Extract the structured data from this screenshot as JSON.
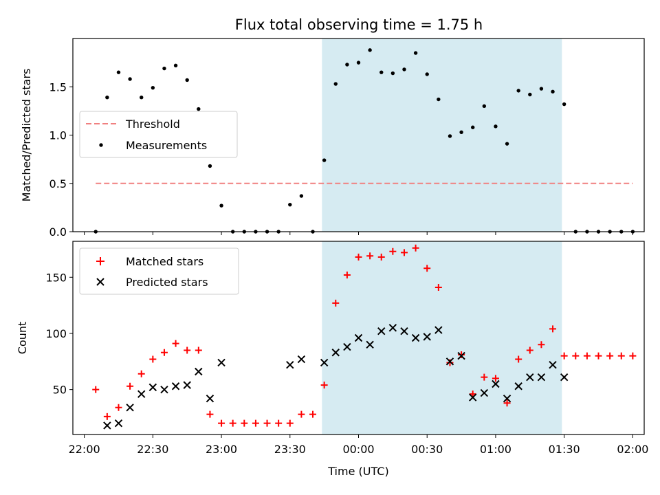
{
  "title": "Flux total observing time = 1.75 h",
  "colors": {
    "threshold": "#f08080",
    "measurement": "#000000",
    "matched": "#ff0000",
    "predicted": "#000000",
    "span": "#add8e6"
  },
  "chart_data": [
    {
      "type": "scatter",
      "ylabel": "Matched/Predicted stars",
      "ylim": [
        0,
        2.0
      ],
      "yticks": [
        0.0,
        0.5,
        1.0,
        1.5
      ],
      "ytick_labels": [
        "0.0",
        "0.5",
        "1.0",
        "1.5"
      ],
      "xlim": [
        "21:55",
        "02:05"
      ],
      "highlight_span": [
        "23:44",
        "01:29"
      ],
      "legend": "center-left",
      "threshold": {
        "name": "Threshold",
        "value": 0.5,
        "x_start": "22:05",
        "x_end": "02:00"
      },
      "series": [
        {
          "name": "Measurements",
          "x": [
            "22:05",
            "22:10",
            "22:15",
            "22:20",
            "22:25",
            "22:30",
            "22:35",
            "22:40",
            "22:45",
            "22:50",
            "22:55",
            "23:00",
            "23:05",
            "23:10",
            "23:15",
            "23:20",
            "23:25",
            "23:30",
            "23:35",
            "23:40",
            "23:45",
            "23:50",
            "23:55",
            "00:00",
            "00:05",
            "00:10",
            "00:15",
            "00:20",
            "00:25",
            "00:30",
            "00:35",
            "00:40",
            "00:45",
            "00:50",
            "00:55",
            "01:00",
            "01:05",
            "01:10",
            "01:15",
            "01:20",
            "01:25",
            "01:30",
            "01:35",
            "01:40",
            "01:45",
            "01:50",
            "01:55",
            "02:00"
          ],
          "y": [
            0,
            1.39,
            1.65,
            1.58,
            1.39,
            1.49,
            1.69,
            1.72,
            1.57,
            1.27,
            0.68,
            0.27,
            0,
            0,
            0,
            0,
            0,
            0.28,
            0.37,
            0,
            0.74,
            1.53,
            1.73,
            1.75,
            1.88,
            1.65,
            1.64,
            1.68,
            1.85,
            1.63,
            1.37,
            0.99,
            1.03,
            1.08,
            1.3,
            1.09,
            0.91,
            1.46,
            1.42,
            1.48,
            1.45,
            1.32,
            0,
            0,
            0,
            0,
            0,
            0
          ]
        }
      ]
    },
    {
      "type": "scatter",
      "xlabel": "Time (UTC)",
      "ylabel": "Count",
      "ylim": [
        10,
        182
      ],
      "yticks": [
        50,
        100,
        150
      ],
      "xticks": [
        "22:00",
        "22:30",
        "23:00",
        "23:30",
        "00:00",
        "00:30",
        "01:00",
        "01:30",
        "02:00"
      ],
      "xlim": [
        "21:55",
        "02:05"
      ],
      "highlight_span": [
        "23:44",
        "01:29"
      ],
      "legend": "top-left",
      "series": [
        {
          "name": "Matched stars",
          "x": [
            "22:05",
            "22:10",
            "22:15",
            "22:20",
            "22:25",
            "22:30",
            "22:35",
            "22:40",
            "22:45",
            "22:50",
            "22:55",
            "23:00",
            "23:05",
            "23:10",
            "23:15",
            "23:20",
            "23:25",
            "23:30",
            "23:35",
            "23:40",
            "23:45",
            "23:50",
            "23:55",
            "00:00",
            "00:05",
            "00:10",
            "00:15",
            "00:20",
            "00:25",
            "00:30",
            "00:35",
            "00:40",
            "00:45",
            "00:50",
            "00:55",
            "01:00",
            "01:05",
            "01:10",
            "01:15",
            "01:20",
            "01:25",
            "01:30",
            "01:35",
            "01:40",
            "01:45",
            "01:50",
            "01:55",
            "02:00"
          ],
          "y": [
            50,
            26,
            34,
            53,
            64,
            77,
            83,
            91,
            85,
            85,
            28,
            20,
            20,
            20,
            20,
            20,
            20,
            20,
            28,
            28,
            54,
            127,
            152,
            168,
            169,
            168,
            173,
            172,
            176,
            158,
            141,
            74,
            81,
            46,
            61,
            60,
            38,
            77,
            85,
            90,
            104,
            80,
            80,
            80,
            80,
            80,
            80,
            80
          ]
        },
        {
          "name": "Predicted stars",
          "x": [
            "22:10",
            "22:15",
            "22:20",
            "22:25",
            "22:30",
            "22:35",
            "22:40",
            "22:45",
            "22:50",
            "22:55",
            "23:00",
            "23:30",
            "23:35",
            "23:45",
            "23:50",
            "23:55",
            "00:00",
            "00:05",
            "00:10",
            "00:15",
            "00:20",
            "00:25",
            "00:30",
            "00:35",
            "00:40",
            "00:45",
            "00:50",
            "00:55",
            "01:00",
            "01:05",
            "01:10",
            "01:15",
            "01:20",
            "01:25",
            "01:30"
          ],
          "y": [
            18,
            20,
            34,
            46,
            52,
            50,
            53,
            54,
            66,
            42,
            74,
            72,
            77,
            74,
            83,
            88,
            96,
            90,
            102,
            105,
            102,
            96,
            97,
            103,
            75,
            80,
            43,
            47,
            55,
            42,
            53,
            61,
            61,
            72,
            61
          ]
        }
      ]
    }
  ]
}
